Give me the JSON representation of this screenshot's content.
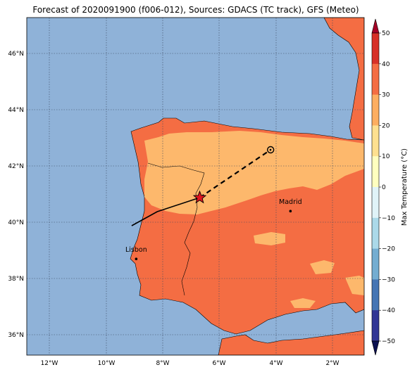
{
  "title": "Forecast of 2020091900 (f006-012), Sources: GDACS (TC track), GFS (Meteo)",
  "map": {
    "lat_ticks": [
      "46°N",
      "44°N",
      "42°N",
      "40°N",
      "38°N",
      "36°N"
    ],
    "lon_ticks": [
      "12°W",
      "10°W",
      "8°W",
      "6°W",
      "4°W",
      "2°W"
    ],
    "extent": {
      "lon": [
        -13,
        -1.1
      ],
      "lat": [
        35.3,
        47.3
      ]
    },
    "gridlines": true
  },
  "cities": [
    {
      "name": "Madrid",
      "lon": -3.7,
      "lat": 40.42
    },
    {
      "name": "Lisbon",
      "lon": -9.14,
      "lat": 38.72
    }
  ],
  "track": {
    "past": [
      [
        -9.3,
        39.9
      ],
      [
        -8.4,
        40.4
      ],
      [
        -6.9,
        40.9
      ]
    ],
    "forecast": [
      [
        -6.9,
        40.9
      ],
      [
        -4.4,
        42.6
      ]
    ],
    "current_position": [
      -6.9,
      40.9
    ],
    "forecast_end": [
      -4.4,
      42.6
    ]
  },
  "colorbar": {
    "title": "Max Temperature (°C)",
    "ticks": [
      "50",
      "40",
      "30",
      "20",
      "10",
      "0",
      "−10",
      "−20",
      "−30",
      "−40",
      "−50"
    ],
    "colors": [
      "#a50026",
      "#d73027",
      "#f46d43",
      "#fdae61",
      "#fee090",
      "#ffffbf",
      "#e0f3f8",
      "#abd9e9",
      "#74add1",
      "#4575b4",
      "#313695",
      "#1a237e"
    ]
  },
  "colors": {
    "sea": "#8fb2d8",
    "land_hot": "#f46d43",
    "land_warm": "#fdb86c"
  }
}
